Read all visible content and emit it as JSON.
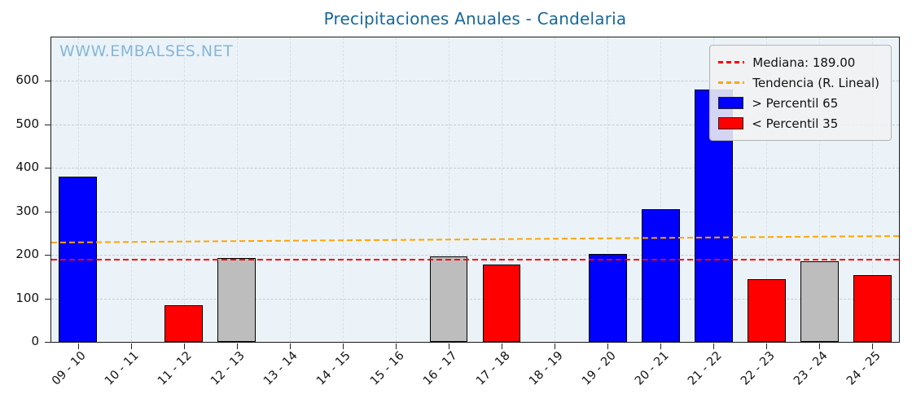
{
  "watermark": "WWW.EMBALSES.NET",
  "chart_data": {
    "type": "bar",
    "title": "Precipitaciones Anuales - Candelaria",
    "xlabel": "",
    "ylabel": "",
    "categories": [
      "09 - 10",
      "10 - 11",
      "11 - 12",
      "12 - 13",
      "13 - 14",
      "14 - 15",
      "15 - 16",
      "16 - 17",
      "17 - 18",
      "18 - 19",
      "19 - 20",
      "20 - 21",
      "21 - 22",
      "22 - 23",
      "23 - 24",
      "24 - 25"
    ],
    "values": [
      380,
      0,
      85,
      192,
      0,
      0,
      0,
      196,
      177,
      0,
      203,
      305,
      580,
      145,
      186,
      153
    ],
    "bar_colors": [
      "blue",
      "none",
      "red",
      "gray",
      "none",
      "none",
      "none",
      "gray",
      "red",
      "none",
      "blue",
      "blue",
      "blue",
      "red",
      "gray",
      "red"
    ],
    "ylim": [
      0,
      700
    ],
    "yticks": [
      0,
      100,
      200,
      300,
      400,
      500,
      600
    ],
    "grid": true,
    "median": 189.0,
    "trend": {
      "start": 228,
      "end": 243
    },
    "legend": {
      "position": "top-right",
      "items": [
        {
          "label": "Mediana: 189.00",
          "type": "dashed-line",
          "color": "#ff0000"
        },
        {
          "label": "Tendencia (R. Lineal)",
          "type": "dashed-line",
          "color": "#ffa500"
        },
        {
          "label": "> Percentil 65",
          "type": "rect",
          "color": "#0000ff"
        },
        {
          "label": "< Percentil 35",
          "type": "rect",
          "color": "#ff0000"
        }
      ]
    },
    "colors": {
      "blue": "#0000ff",
      "red": "#ff0000",
      "gray": "#bdbdbd",
      "median": "#ff0000",
      "trend": "#ffa500",
      "title": "#17679a",
      "watermark": "#86b6d8",
      "plot_background": "#ebf3f8"
    }
  }
}
